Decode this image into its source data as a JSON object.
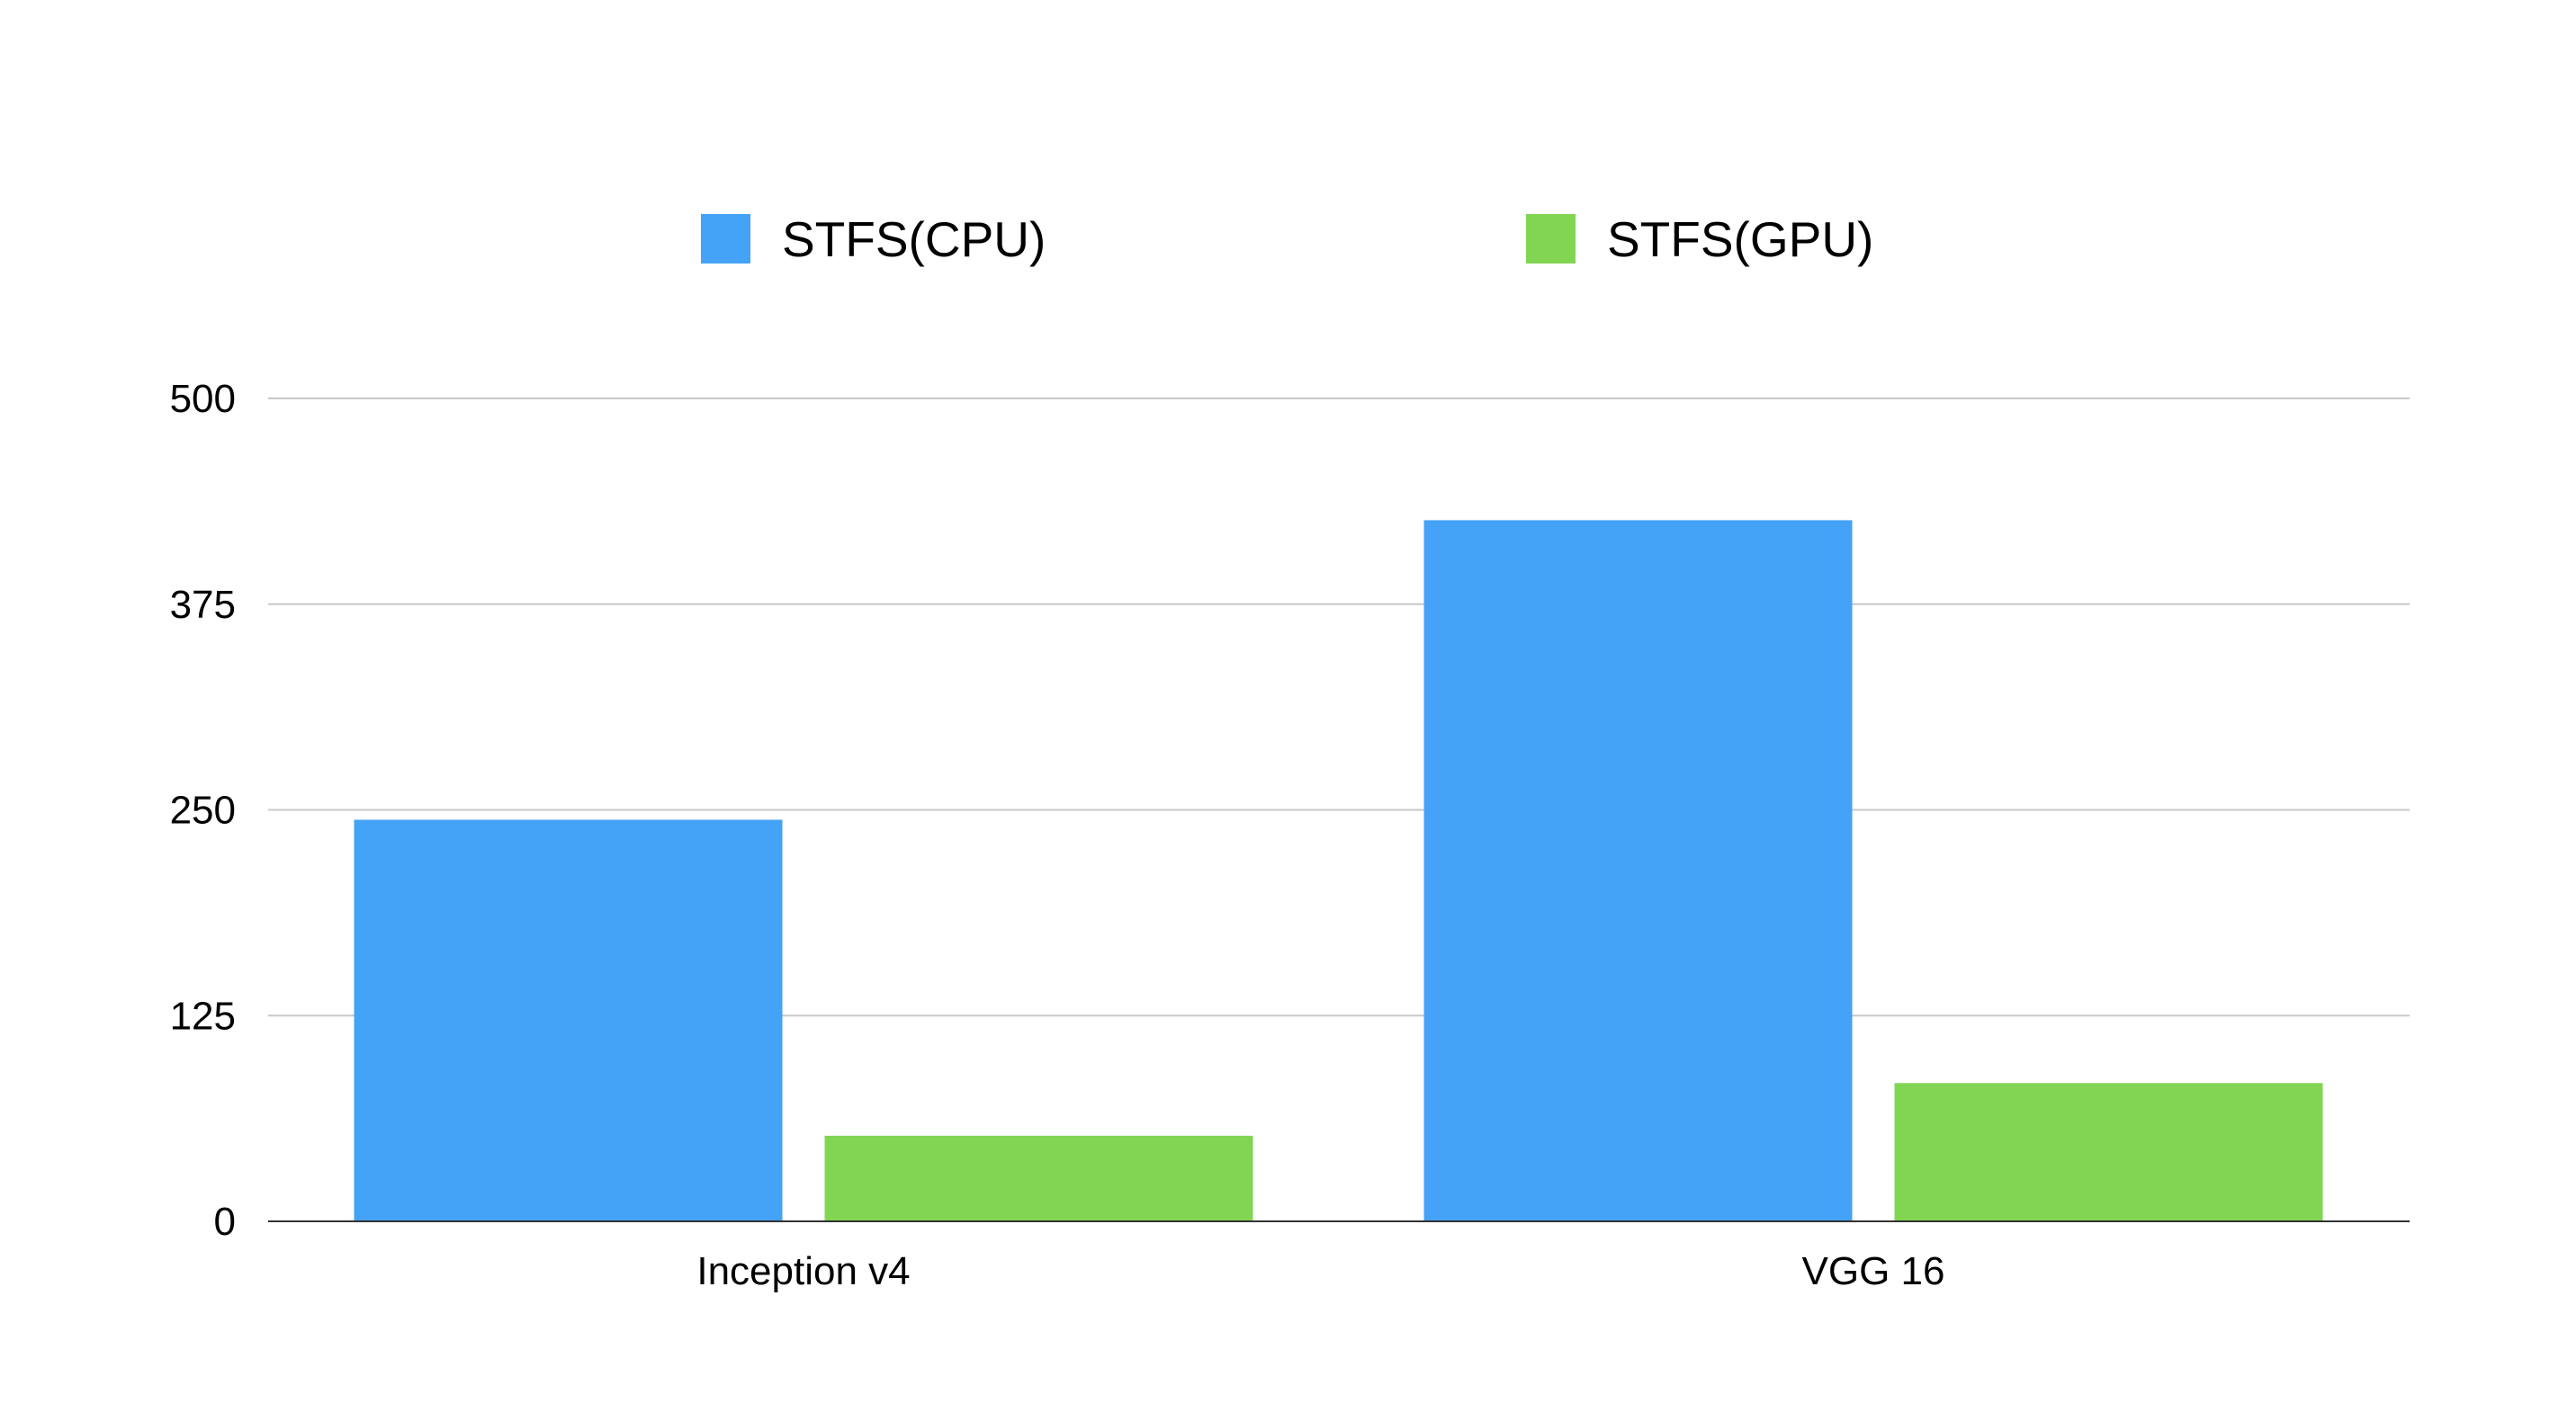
{
  "chart_data": {
    "type": "bar",
    "categories": [
      "Inception v4",
      "VGG 16"
    ],
    "series": [
      {
        "name": "STFS(CPU)",
        "color": "#44A2F7",
        "values": [
          244,
          426
        ]
      },
      {
        "name": "STFS(GPU)",
        "color": "#82D553",
        "values": [
          52,
          84
        ]
      }
    ],
    "ylim": [
      0,
      500
    ],
    "yticks": [
      "0",
      "125",
      "250",
      "375",
      "500"
    ],
    "grid": true,
    "legend_position": "top",
    "gridline_color": "#C8C8C8",
    "axis_color": "#333333"
  }
}
